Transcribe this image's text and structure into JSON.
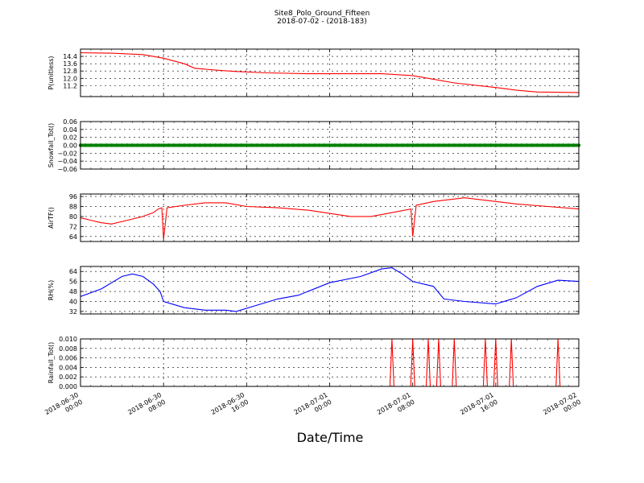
{
  "title": "Site8_Polo_Ground_Fifteen",
  "subtitle": "2018-07-02 - (2018-183)",
  "chart_data": {
    "type": "line",
    "xlabel": "Date/Time",
    "x_range": [
      "2018-06-30 00:00",
      "2018-07-02 00:00"
    ],
    "x_ticks": [
      {
        "label": "2018-06-30\n00:00",
        "t": "2018-06-30 00:00"
      },
      {
        "label": "2018-06-30\n08:00",
        "t": "2018-06-30 08:00"
      },
      {
        "label": "2018-06-30\n16:00",
        "t": "2018-06-30 16:00"
      },
      {
        "label": "2018-07-01\n00:00",
        "t": "2018-07-01 00:00"
      },
      {
        "label": "2018-07-01\n08:00",
        "t": "2018-07-01 08:00"
      },
      {
        "label": "2018-07-01\n16:00",
        "t": "2018-07-01 16:00"
      },
      {
        "label": "2018-07-02\n00:00",
        "t": "2018-07-02 00:00"
      }
    ],
    "grid": true,
    "panels": [
      {
        "ylabel": "P(unitless)",
        "ylim": [
          10.0,
          15.2
        ],
        "yticks": [
          "14.4",
          "13.6",
          "12.8",
          "12.0",
          "11.2"
        ],
        "color": "#ff0000",
        "series": [
          {
            "t": "2018-06-30 00:00",
            "v": 14.8
          },
          {
            "t": "2018-06-30 03:00",
            "v": 14.75
          },
          {
            "t": "2018-06-30 06:00",
            "v": 14.6
          },
          {
            "t": "2018-06-30 08:00",
            "v": 14.2
          },
          {
            "t": "2018-06-30 10:00",
            "v": 13.6
          },
          {
            "t": "2018-06-30 11:00",
            "v": 13.1
          },
          {
            "t": "2018-06-30 13:00",
            "v": 12.9
          },
          {
            "t": "2018-06-30 15:00",
            "v": 12.75
          },
          {
            "t": "2018-06-30 18:00",
            "v": 12.6
          },
          {
            "t": "2018-06-30 22:00",
            "v": 12.5
          },
          {
            "t": "2018-07-01 00:00",
            "v": 12.5
          },
          {
            "t": "2018-07-01 05:00",
            "v": 12.5
          },
          {
            "t": "2018-07-01 08:00",
            "v": 12.3
          },
          {
            "t": "2018-07-01 10:00",
            "v": 11.9
          },
          {
            "t": "2018-07-01 12:00",
            "v": 11.5
          },
          {
            "t": "2018-07-01 16:00",
            "v": 11.0
          },
          {
            "t": "2018-07-01 18:00",
            "v": 10.7
          },
          {
            "t": "2018-07-01 20:00",
            "v": 10.5
          },
          {
            "t": "2018-07-02 00:00",
            "v": 10.45
          }
        ]
      },
      {
        "ylabel": "Snowfall_Tot()",
        "ylim": [
          -0.06,
          0.06
        ],
        "yticks": [
          "0.06",
          "0.04",
          "0.02",
          "0.00",
          "−0.02",
          "−0.04",
          "−0.06"
        ],
        "color": "#008000",
        "marker_line": true,
        "series": [
          {
            "t": "2018-06-30 00:00",
            "v": 0.0
          },
          {
            "t": "2018-07-02 00:00",
            "v": 0.0
          }
        ]
      },
      {
        "ylabel": "AirTF()",
        "ylim": [
          60,
          98
        ],
        "yticks": [
          "96",
          "88",
          "80",
          "72",
          "64"
        ],
        "color": "#ff0000",
        "series": [
          {
            "t": "2018-06-30 00:00",
            "v": 79
          },
          {
            "t": "2018-06-30 01:00",
            "v": 77
          },
          {
            "t": "2018-06-30 02:00",
            "v": 75
          },
          {
            "t": "2018-06-30 03:00",
            "v": 74
          },
          {
            "t": "2018-06-30 05:00",
            "v": 78
          },
          {
            "t": "2018-06-30 06:00",
            "v": 80
          },
          {
            "t": "2018-06-30 07:00",
            "v": 83
          },
          {
            "t": "2018-06-30 07:30",
            "v": 86
          },
          {
            "t": "2018-06-30 07:50",
            "v": 87
          },
          {
            "t": "2018-06-30 08:00",
            "v": 62
          },
          {
            "t": "2018-06-30 08:20",
            "v": 87
          },
          {
            "t": "2018-06-30 10:00",
            "v": 89
          },
          {
            "t": "2018-06-30 12:00",
            "v": 91
          },
          {
            "t": "2018-06-30 14:00",
            "v": 91
          },
          {
            "t": "2018-06-30 16:00",
            "v": 88
          },
          {
            "t": "2018-06-30 19:00",
            "v": 87
          },
          {
            "t": "2018-06-30 22:00",
            "v": 85
          },
          {
            "t": "2018-07-01 02:00",
            "v": 80
          },
          {
            "t": "2018-07-01 04:00",
            "v": 80
          },
          {
            "t": "2018-07-01 07:50",
            "v": 86
          },
          {
            "t": "2018-07-01 08:00",
            "v": 64
          },
          {
            "t": "2018-07-01 08:20",
            "v": 89
          },
          {
            "t": "2018-07-01 10:00",
            "v": 92
          },
          {
            "t": "2018-07-01 13:00",
            "v": 95
          },
          {
            "t": "2018-07-01 16:00",
            "v": 92
          },
          {
            "t": "2018-07-01 18:00",
            "v": 90
          },
          {
            "t": "2018-07-01 21:00",
            "v": 88
          },
          {
            "t": "2018-07-02 00:00",
            "v": 86
          }
        ]
      },
      {
        "ylabel": "RH(%)",
        "ylim": [
          30,
          68
        ],
        "yticks": [
          "64",
          "56",
          "48",
          "40",
          "32"
        ],
        "color": "#0000ff",
        "series": [
          {
            "t": "2018-06-30 00:00",
            "v": 44
          },
          {
            "t": "2018-06-30 02:00",
            "v": 50
          },
          {
            "t": "2018-06-30 03:00",
            "v": 55
          },
          {
            "t": "2018-06-30 04:00",
            "v": 60
          },
          {
            "t": "2018-06-30 05:00",
            "v": 62
          },
          {
            "t": "2018-06-30 06:00",
            "v": 60
          },
          {
            "t": "2018-06-30 07:00",
            "v": 54
          },
          {
            "t": "2018-06-30 07:40",
            "v": 48
          },
          {
            "t": "2018-06-30 08:00",
            "v": 40
          },
          {
            "t": "2018-06-30 10:00",
            "v": 35
          },
          {
            "t": "2018-06-30 12:00",
            "v": 33
          },
          {
            "t": "2018-06-30 14:00",
            "v": 33
          },
          {
            "t": "2018-06-30 15:00",
            "v": 32
          },
          {
            "t": "2018-06-30 17:00",
            "v": 37
          },
          {
            "t": "2018-06-30 19:00",
            "v": 42
          },
          {
            "t": "2018-06-30 21:00",
            "v": 45
          },
          {
            "t": "2018-07-01 00:00",
            "v": 55
          },
          {
            "t": "2018-07-01 03:00",
            "v": 60
          },
          {
            "t": "2018-07-01 05:00",
            "v": 66
          },
          {
            "t": "2018-07-01 06:00",
            "v": 67
          },
          {
            "t": "2018-07-01 07:00",
            "v": 62
          },
          {
            "t": "2018-07-01 08:00",
            "v": 56
          },
          {
            "t": "2018-07-01 10:00",
            "v": 52
          },
          {
            "t": "2018-07-01 11:00",
            "v": 42
          },
          {
            "t": "2018-07-01 13:00",
            "v": 40
          },
          {
            "t": "2018-07-01 16:00",
            "v": 38
          },
          {
            "t": "2018-07-01 18:00",
            "v": 43
          },
          {
            "t": "2018-07-01 20:00",
            "v": 52
          },
          {
            "t": "2018-07-01 22:00",
            "v": 57
          },
          {
            "t": "2018-07-02 00:00",
            "v": 56
          }
        ]
      },
      {
        "ylabel": "Rainfall_Tot()",
        "ylim": [
          0,
          0.01
        ],
        "yticks": [
          "0.010",
          "0.008",
          "0.006",
          "0.004",
          "0.002",
          "0.000"
        ],
        "color": "#ff0000",
        "spikes": [
          "2018-07-01 06:00",
          "2018-07-01 08:00",
          "2018-07-01 09:30",
          "2018-07-01 10:30",
          "2018-07-01 12:00",
          "2018-07-01 15:00",
          "2018-07-01 16:00",
          "2018-07-01 17:30",
          "2018-07-01 22:00"
        ],
        "spike_value": 0.01
      }
    ]
  }
}
